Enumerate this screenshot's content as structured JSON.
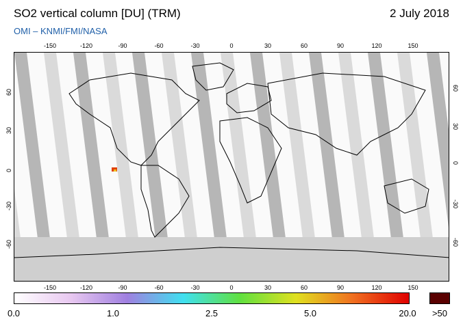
{
  "header": {
    "title": "SO2 vertical column [DU] (TRM)",
    "date": "2 July 2018",
    "credit": "OMI  –  KNMI/FMI/NASA"
  },
  "map": {
    "projection": "equirectangular",
    "lon_range": [
      -180,
      180
    ],
    "lat_range": [
      -90,
      90
    ],
    "x_ticks": [
      "-150",
      "-120",
      "-90",
      "-60",
      "-30",
      "0",
      "30",
      "60",
      "90",
      "120",
      "150"
    ],
    "y_ticks": [
      "60",
      "30",
      "0",
      "-30",
      "-60"
    ],
    "colors": {
      "land_outline": "#000000",
      "swath_gap_light": "#d3d3d3",
      "swath_dark": "#a9a9a9",
      "background": "#fafafa",
      "polar_fill": "#c8c8c8"
    },
    "features": [
      {
        "name": "so2-plume-ecuador",
        "lon": -94,
        "lat": -1,
        "color": "#d94b00"
      }
    ]
  },
  "colorbar": {
    "labels": [
      "0.0",
      "1.0",
      "2.5",
      "5.0",
      "20.0"
    ],
    "saturation_label": ">50",
    "stops": [
      "#ffffff",
      "#e8c8f0",
      "#a080e0",
      "#40e0f0",
      "#60e040",
      "#e0e020",
      "#f07020",
      "#e00000"
    ],
    "saturation_color": "#5a0000"
  }
}
